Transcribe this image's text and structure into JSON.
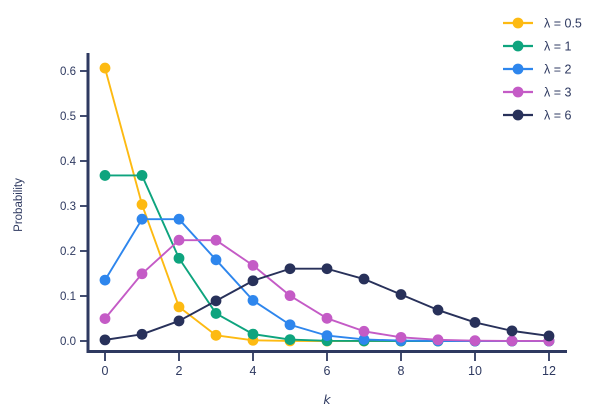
{
  "chart_data": {
    "type": "line",
    "title": "",
    "xlabel": "k",
    "ylabel": "Probability",
    "x": [
      0,
      1,
      2,
      3,
      4,
      5,
      6,
      7,
      8,
      9,
      10,
      11,
      12
    ],
    "x_ticks": [
      0,
      2,
      4,
      6,
      8,
      10,
      12
    ],
    "y_ticks": [
      "0.0",
      "0.1",
      "0.2",
      "0.3",
      "0.4",
      "0.5",
      "0.6"
    ],
    "xlim": [
      0,
      12
    ],
    "ylim": [
      0.0,
      0.6
    ],
    "grid": false,
    "marker": "circle",
    "legend_position": "top-right",
    "axis_color": "#2E3960",
    "text_color": "#2E3960",
    "background_color": "#FFFFFF",
    "series": [
      {
        "name": "λ = 0.5",
        "color": "#FDBA12",
        "values": [
          0.6065,
          0.3033,
          0.0758,
          0.0126,
          0.0016,
          0.0002,
          0.0,
          0.0,
          0.0,
          0.0,
          0.0,
          0.0,
          0.0
        ]
      },
      {
        "name": "λ = 1",
        "color": "#0EA47E",
        "values": [
          0.3679,
          0.3679,
          0.1839,
          0.0613,
          0.0153,
          0.0031,
          0.0005,
          0.0001,
          0.0,
          0.0,
          0.0,
          0.0,
          0.0
        ]
      },
      {
        "name": "λ = 2",
        "color": "#2E86ED",
        "values": [
          0.1353,
          0.2707,
          0.2707,
          0.1804,
          0.0902,
          0.0361,
          0.012,
          0.0034,
          0.0009,
          0.0002,
          0.0,
          0.0,
          0.0
        ]
      },
      {
        "name": "λ = 3",
        "color": "#C45BC6",
        "values": [
          0.0498,
          0.1494,
          0.224,
          0.224,
          0.168,
          0.1008,
          0.0504,
          0.0216,
          0.0081,
          0.0027,
          0.0008,
          0.0002,
          0.0001
        ]
      },
      {
        "name": "λ = 6",
        "color": "#28315A",
        "values": [
          0.0025,
          0.0149,
          0.0446,
          0.0892,
          0.1339,
          0.1606,
          0.1606,
          0.1377,
          0.1033,
          0.0688,
          0.0413,
          0.0225,
          0.0113
        ]
      }
    ]
  }
}
